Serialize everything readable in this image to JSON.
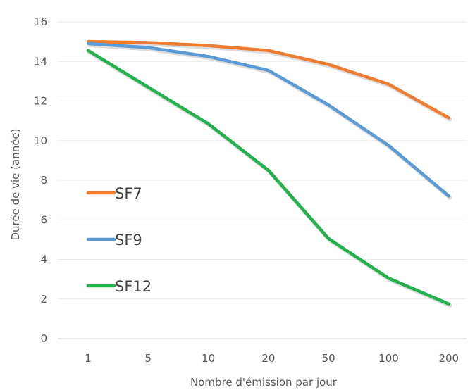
{
  "chart_data": {
    "type": "line",
    "categories": [
      "1",
      "5",
      "10",
      "20",
      "50",
      "100",
      "200"
    ],
    "xlabel": "Nombre d'émission par jour",
    "ylabel": "Durée de vie (année)",
    "ylim": [
      0,
      16
    ],
    "yticks": [
      0,
      2,
      4,
      6,
      8,
      10,
      12,
      14,
      16
    ],
    "grid": true,
    "legend_position": "left",
    "series": [
      {
        "name": "SF7",
        "color": "#ED7D31",
        "values": [
          15.0,
          14.95,
          14.8,
          14.55,
          13.85,
          12.85,
          11.15
        ]
      },
      {
        "name": "SF9",
        "color": "#5B9BD5",
        "values": [
          14.9,
          14.7,
          14.25,
          13.55,
          11.8,
          9.75,
          7.2
        ]
      },
      {
        "name": "SF12",
        "color": "#22B14C",
        "values": [
          14.55,
          12.7,
          10.85,
          8.5,
          5.05,
          3.05,
          1.75
        ]
      }
    ]
  }
}
